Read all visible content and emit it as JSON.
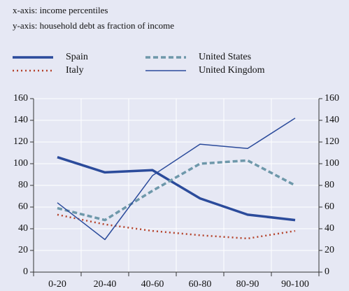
{
  "chart_data": {
    "type": "line",
    "annotations": [
      "x-axis: income percentiles",
      "y-axis: household debt as fraction of income"
    ],
    "categories": [
      "0-20",
      "20-40",
      "40-60",
      "60-80",
      "80-90",
      "90-100"
    ],
    "series": [
      {
        "name": "Spain",
        "color": "#2b4b9b",
        "style": "solid",
        "width": 3.5,
        "values": [
          106,
          92,
          94,
          68,
          53,
          48
        ]
      },
      {
        "name": "Italy",
        "color": "#b5432b",
        "style": "dotted",
        "width": 2.5,
        "values": [
          53,
          44,
          38,
          34,
          31,
          38
        ]
      },
      {
        "name": "United States",
        "color": "#6e98aa",
        "style": "dashed",
        "width": 3.5,
        "values": [
          59,
          48,
          75,
          100,
          103,
          80
        ]
      },
      {
        "name": "United Kingdom",
        "color": "#2b4b9b",
        "style": "solid",
        "width": 1.5,
        "values": [
          64,
          30,
          89,
          118,
          114,
          142
        ]
      }
    ],
    "ylim": [
      0,
      160
    ],
    "yticks": [
      0,
      20,
      40,
      60,
      80,
      100,
      120,
      140,
      160
    ],
    "y2lim": [
      0,
      160
    ],
    "y2ticks": [
      0,
      20,
      40,
      60,
      80,
      100,
      120,
      140,
      160
    ],
    "grid": true
  }
}
